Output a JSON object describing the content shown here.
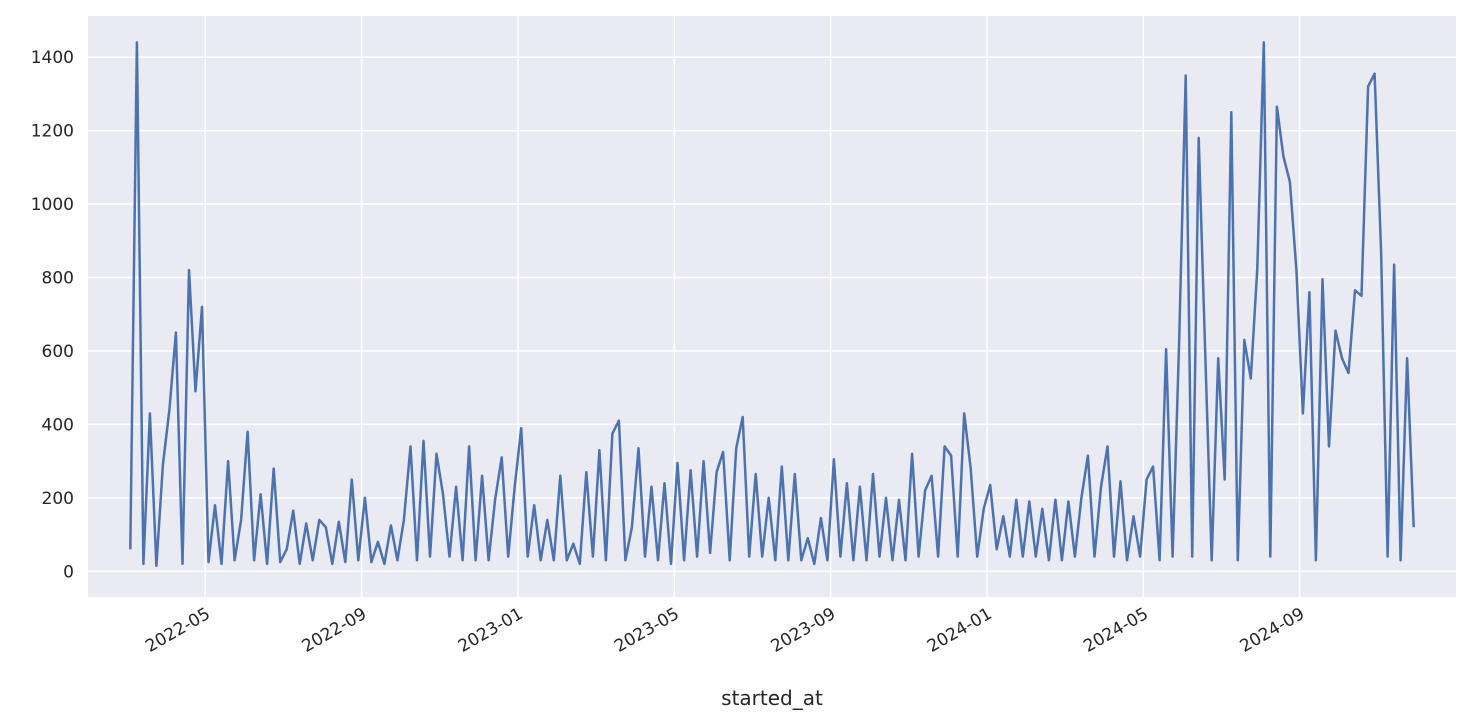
{
  "chart_data": {
    "type": "line",
    "xlabel": "started_at",
    "color": "#4c72b0",
    "grid": true,
    "xlim": [
      "2022-02",
      "2025-01"
    ],
    "xticks": [
      "2022-05",
      "2022-09",
      "2023-01",
      "2023-05",
      "2023-09",
      "2024-01",
      "2024-05",
      "2024-09"
    ],
    "ylim": [
      -70,
      1512
    ],
    "yticks": [
      0,
      200,
      400,
      600,
      800,
      1000,
      1200,
      1400
    ],
    "x": [
      "2022-03",
      "2022-03",
      "2022-03",
      "2022-03",
      "2022-03",
      "2022-03",
      "2022-04",
      "2022-04",
      "2022-04",
      "2022-04",
      "2022-04",
      "2022-04",
      "2022-05",
      "2022-05",
      "2022-05",
      "2022-05",
      "2022-05",
      "2022-05",
      "2022-06",
      "2022-06",
      "2022-06",
      "2022-06",
      "2022-06",
      "2022-06",
      "2022-07",
      "2022-07",
      "2022-07",
      "2022-07",
      "2022-07",
      "2022-07",
      "2022-08",
      "2022-08",
      "2022-08",
      "2022-08",
      "2022-08",
      "2022-08",
      "2022-09",
      "2022-09",
      "2022-09",
      "2022-09",
      "2022-09",
      "2022-09",
      "2022-10",
      "2022-10",
      "2022-10",
      "2022-10",
      "2022-10",
      "2022-10",
      "2022-11",
      "2022-11",
      "2022-11",
      "2022-11",
      "2022-11",
      "2022-11",
      "2022-12",
      "2022-12",
      "2022-12",
      "2022-12",
      "2022-12",
      "2022-12",
      "2023-01",
      "2023-01",
      "2023-01",
      "2023-01",
      "2023-01",
      "2023-01",
      "2023-02",
      "2023-02",
      "2023-02",
      "2023-02",
      "2023-02",
      "2023-02",
      "2023-03",
      "2023-03",
      "2023-03",
      "2023-03",
      "2023-03",
      "2023-03",
      "2023-04",
      "2023-04",
      "2023-04",
      "2023-04",
      "2023-04",
      "2023-04",
      "2023-05",
      "2023-05",
      "2023-05",
      "2023-05",
      "2023-05",
      "2023-05",
      "2023-06",
      "2023-06",
      "2023-06",
      "2023-06",
      "2023-06",
      "2023-06",
      "2023-07",
      "2023-07",
      "2023-07",
      "2023-07",
      "2023-07",
      "2023-07",
      "2023-08",
      "2023-08",
      "2023-08",
      "2023-08",
      "2023-08",
      "2023-08",
      "2023-09",
      "2023-09",
      "2023-09",
      "2023-09",
      "2023-09",
      "2023-09",
      "2023-10",
      "2023-10",
      "2023-10",
      "2023-10",
      "2023-10",
      "2023-10",
      "2023-11",
      "2023-11",
      "2023-11",
      "2023-11",
      "2023-11",
      "2023-11",
      "2023-12",
      "2023-12",
      "2023-12",
      "2023-12",
      "2023-12",
      "2023-12",
      "2024-01",
      "2024-01",
      "2024-01",
      "2024-01",
      "2024-01",
      "2024-01",
      "2024-02",
      "2024-02",
      "2024-02",
      "2024-02",
      "2024-02",
      "2024-02",
      "2024-03",
      "2024-03",
      "2024-03",
      "2024-03",
      "2024-03",
      "2024-03",
      "2024-04",
      "2024-04",
      "2024-04",
      "2024-04",
      "2024-04",
      "2024-04",
      "2024-05",
      "2024-05",
      "2024-05",
      "2024-05",
      "2024-05",
      "2024-05",
      "2024-06",
      "2024-06",
      "2024-06",
      "2024-06",
      "2024-06",
      "2024-06",
      "2024-07",
      "2024-07",
      "2024-07",
      "2024-07",
      "2024-07",
      "2024-07",
      "2024-08",
      "2024-08",
      "2024-08",
      "2024-08",
      "2024-08",
      "2024-08",
      "2024-09",
      "2024-09",
      "2024-09",
      "2024-09",
      "2024-09",
      "2024-09",
      "2024-10",
      "2024-10",
      "2024-10",
      "2024-10",
      "2024-10",
      "2024-10",
      "2024-11",
      "2024-11",
      "2024-11",
      "2024-11",
      "2024-11",
      "2024-11"
    ],
    "values": [
      60,
      1440,
      20,
      430,
      15,
      290,
      440,
      650,
      20,
      820,
      490,
      720,
      25,
      180,
      20,
      300,
      30,
      140,
      380,
      30,
      210,
      20,
      280,
      25,
      60,
      165,
      20,
      130,
      30,
      140,
      120,
      20,
      135,
      25,
      250,
      30,
      200,
      25,
      80,
      20,
      125,
      30,
      140,
      340,
      30,
      355,
      40,
      320,
      210,
      40,
      230,
      30,
      340,
      30,
      260,
      30,
      195,
      310,
      40,
      230,
      390,
      40,
      180,
      30,
      140,
      30,
      260,
      30,
      75,
      20,
      270,
      40,
      330,
      30,
      375,
      410,
      30,
      120,
      335,
      40,
      230,
      30,
      240,
      20,
      295,
      30,
      275,
      40,
      300,
      50,
      270,
      325,
      30,
      335,
      420,
      40,
      265,
      40,
      200,
      30,
      285,
      30,
      265,
      30,
      90,
      20,
      145,
      30,
      305,
      40,
      240,
      30,
      230,
      30,
      265,
      40,
      200,
      30,
      195,
      30,
      320,
      40,
      220,
      260,
      40,
      340,
      315,
      40,
      430,
      280,
      40,
      170,
      235,
      60,
      150,
      40,
      195,
      40,
      190,
      40,
      170,
      30,
      195,
      30,
      190,
      40,
      200,
      315,
      40,
      230,
      340,
      40,
      245,
      30,
      150,
      40,
      250,
      285,
      30,
      605,
      40,
      620,
      1350,
      40,
      1180,
      595,
      30,
      580,
      250,
      1250,
      30,
      630,
      525,
      825,
      1440,
      40,
      1265,
      1130,
      1060,
      820,
      430,
      760,
      30,
      795,
      340,
      655,
      580,
      540,
      765,
      750,
      1320,
      1355,
      870,
      40,
      835,
      30,
      580,
      120
    ]
  }
}
